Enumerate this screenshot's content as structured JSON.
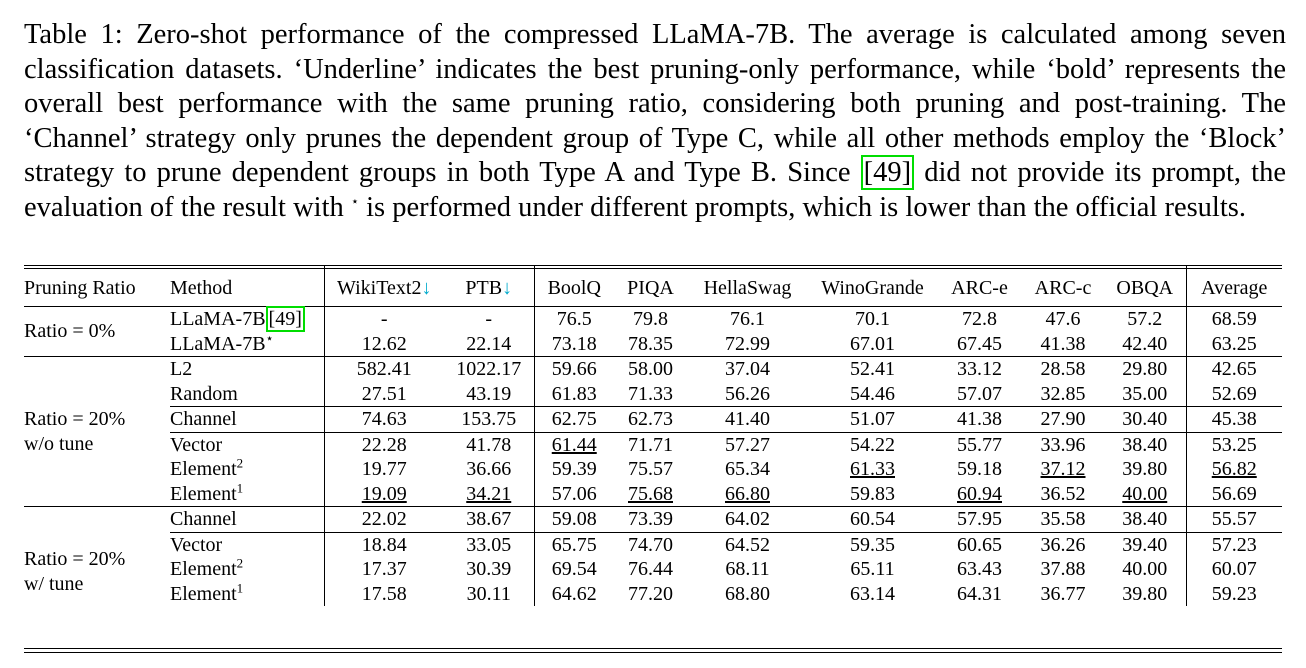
{
  "caption": {
    "label": "Table 1:",
    "part1": " Zero-shot performance of the compressed LLaMA-7B. The average is calculated among seven classification datasets. ‘Underline’ indicates the best pruning-only performance, while ‘bold’ represents the overall best performance with the same pruning ratio, considering both pruning and post-training. The ‘Channel’ strategy only prunes the dependent group of Type C, while all other methods employ the ‘Block’ strategy to prune dependent groups in both Type A and Type B. Since ",
    "ref": "[49]",
    "part2": " did not provide its prompt, the evaluation of the result with ",
    "star": "⋆",
    "part3": " is performed under different prompts, which is lower than the official results."
  },
  "header": {
    "ratio": "Pruning Ratio",
    "method": "Method",
    "wikitext": "WikiText2",
    "ptb": "PTB",
    "down_arrow": "↓",
    "boolq": "BoolQ",
    "piqa": "PIQA",
    "hellaswag": "HellaSwag",
    "winogrande": "WinoGrande",
    "arce": "ARC-e",
    "arcc": "ARC-c",
    "obqa": "OBQA",
    "average": "Average"
  },
  "groups": {
    "g0": "Ratio = 0%",
    "g1_a": "Ratio = 20%",
    "g1_b": "w/o tune",
    "g2_a": "Ratio = 20%",
    "g2_b": "w/ tune"
  },
  "rows": {
    "r0": {
      "method": "LLaMA-7B",
      "ref": "[49]",
      "c": [
        "-",
        "-",
        "76.5",
        "79.8",
        "76.1",
        "70.1",
        "72.8",
        "47.6",
        "57.2",
        "68.59"
      ]
    },
    "r1": {
      "method": "LLaMA-7B",
      "star": "⋆",
      "c": [
        "12.62",
        "22.14",
        "73.18",
        "78.35",
        "72.99",
        "67.01",
        "67.45",
        "41.38",
        "42.40",
        "63.25"
      ]
    },
    "r2": {
      "method": "L2",
      "c": [
        "582.41",
        "1022.17",
        "59.66",
        "58.00",
        "37.04",
        "52.41",
        "33.12",
        "28.58",
        "29.80",
        "42.65"
      ]
    },
    "r3": {
      "method": "Random",
      "c": [
        "27.51",
        "43.19",
        "61.83",
        "71.33",
        "56.26",
        "54.46",
        "57.07",
        "32.85",
        "35.00",
        "52.69"
      ]
    },
    "r4": {
      "method": "Channel",
      "c": [
        "74.63",
        "153.75",
        "62.75",
        "62.73",
        "41.40",
        "51.07",
        "41.38",
        "27.90",
        "30.40",
        "45.38"
      ]
    },
    "r5": {
      "method": "Vector",
      "c": [
        "22.28",
        "41.78",
        "61.44",
        "71.71",
        "57.27",
        "54.22",
        "55.77",
        "33.96",
        "38.40",
        "53.25"
      ]
    },
    "r6": {
      "method": "Element",
      "sup": "2",
      "c": [
        "19.77",
        "36.66",
        "59.39",
        "75.57",
        "65.34",
        "61.33",
        "59.18",
        "37.12",
        "39.80",
        "56.82"
      ]
    },
    "r7": {
      "method": "Element",
      "sup": "1",
      "c": [
        "19.09",
        "34.21",
        "57.06",
        "75.68",
        "66.80",
        "59.83",
        "60.94",
        "36.52",
        "40.00",
        "56.69"
      ]
    },
    "r8": {
      "method": "Channel",
      "c": [
        "22.02",
        "38.67",
        "59.08",
        "73.39",
        "64.02",
        "60.54",
        "57.95",
        "35.58",
        "38.40",
        "55.57"
      ]
    },
    "r9": {
      "method": "Vector",
      "c": [
        "18.84",
        "33.05",
        "65.75",
        "74.70",
        "64.52",
        "59.35",
        "60.65",
        "36.26",
        "39.40",
        "57.23"
      ]
    },
    "r10": {
      "method": "Element",
      "sup": "2",
      "c": [
        "17.37",
        "30.39",
        "69.54",
        "76.44",
        "68.11",
        "65.11",
        "63.43",
        "37.88",
        "40.00",
        "60.07"
      ]
    },
    "r11": {
      "method": "Element",
      "sup": "1",
      "c": [
        "17.58",
        "30.11",
        "64.62",
        "77.20",
        "68.80",
        "63.14",
        "64.31",
        "36.77",
        "39.80",
        "59.23"
      ]
    }
  },
  "colors": {
    "ref_border": "#00dd00",
    "arrow": "#00aacc"
  }
}
